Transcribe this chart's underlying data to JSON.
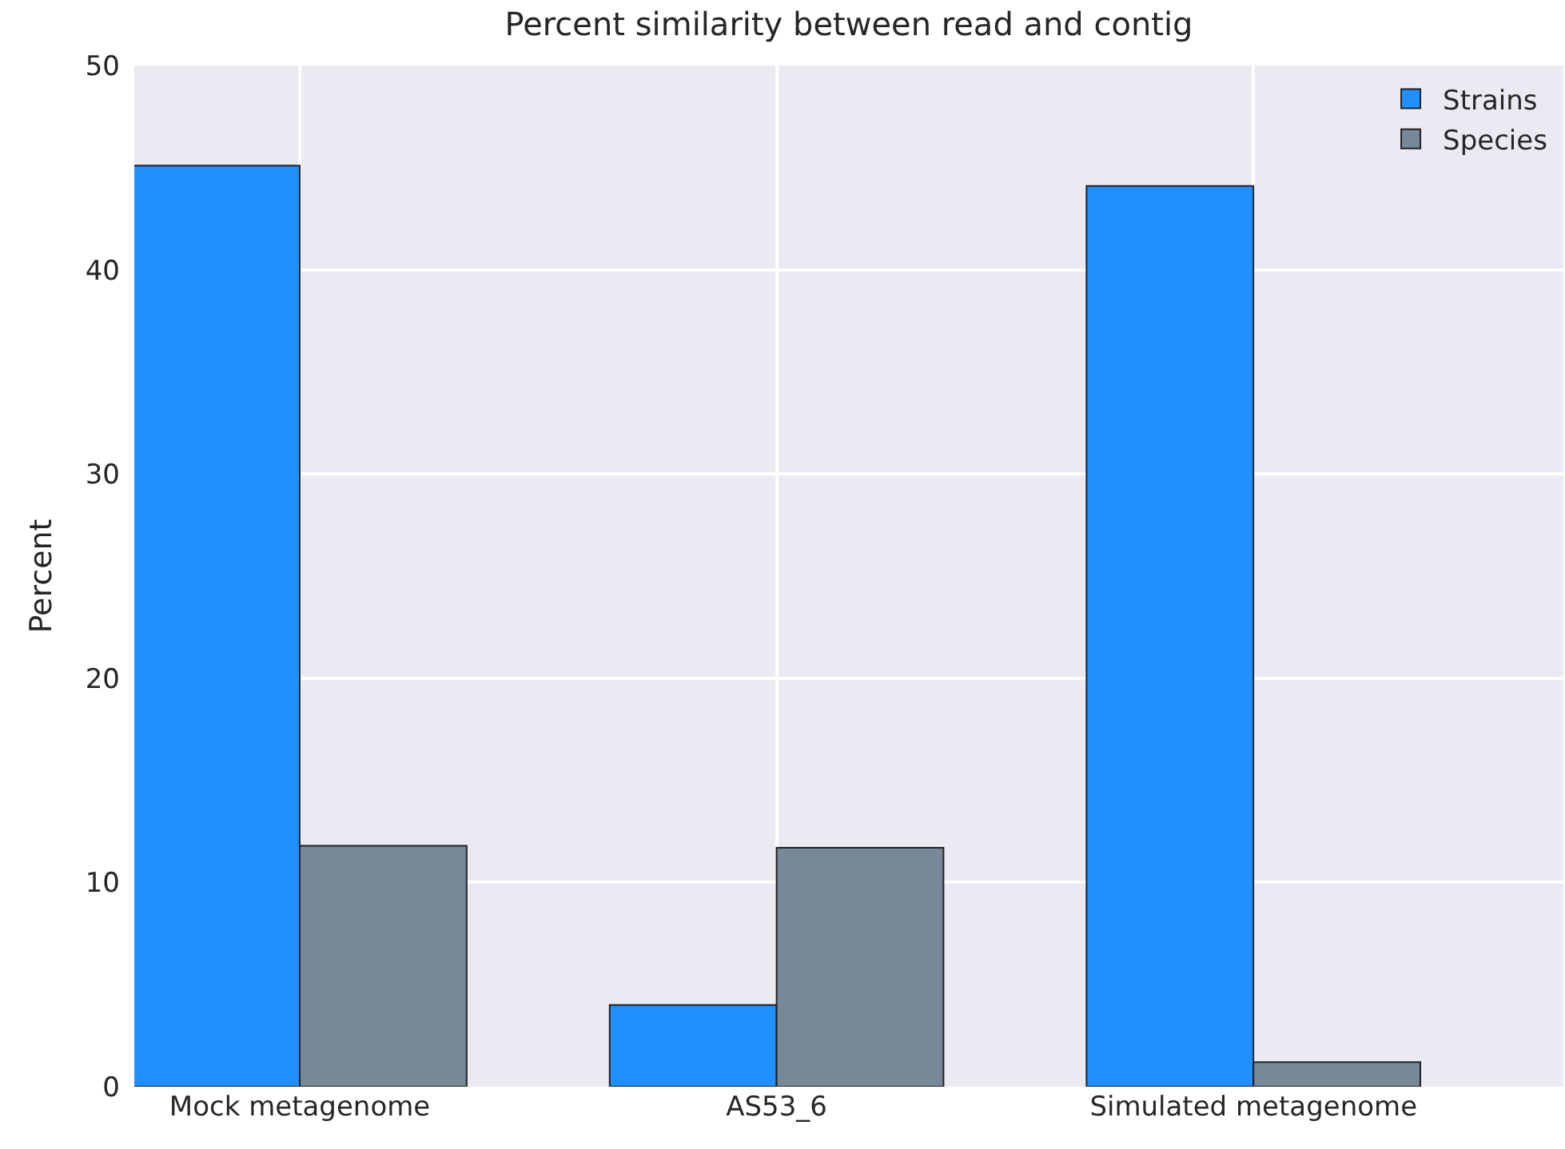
{
  "chart_data": {
    "type": "bar",
    "title": "Percent similarity between read and contig",
    "ylabel": "Percent",
    "categories": [
      "Mock metagenome",
      "AS53_6",
      "Simulated metagenome"
    ],
    "series": [
      {
        "name": "Strains",
        "color": "#1e90ff",
        "values": [
          45.1,
          4.0,
          44.1
        ]
      },
      {
        "name": "Species",
        "color": "#778899",
        "values": [
          11.8,
          11.7,
          1.2
        ]
      }
    ],
    "ylim": [
      0,
      50
    ],
    "yticks": [
      0,
      10,
      20,
      30,
      40,
      50
    ],
    "grid": true,
    "legend": "top right"
  }
}
